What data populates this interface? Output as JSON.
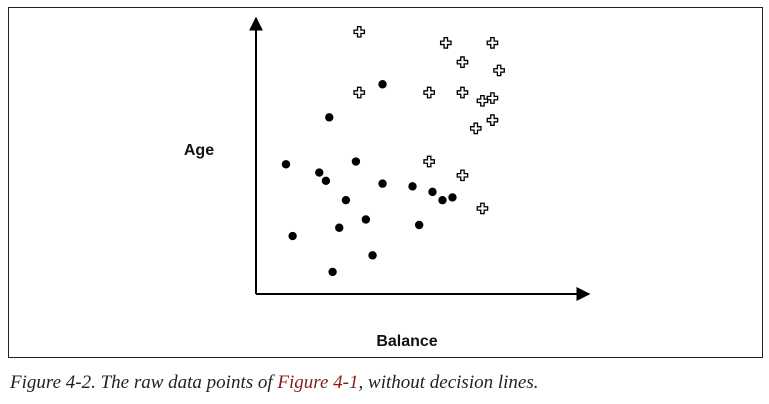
{
  "chart_data": {
    "type": "scatter",
    "xlabel": "Balance",
    "ylabel": "Age",
    "axes_with_arrows": true,
    "tick_labels": "none",
    "grid": false,
    "xlim": [
      0,
      100
    ],
    "ylim": [
      0,
      100
    ],
    "series": [
      {
        "marker": "dot",
        "color": "#000000",
        "points": [
          [
            38,
            76
          ],
          [
            22,
            64
          ],
          [
            9,
            47
          ],
          [
            19,
            44
          ],
          [
            21,
            41
          ],
          [
            30,
            48
          ],
          [
            38,
            40
          ],
          [
            47,
            39
          ],
          [
            53,
            37
          ],
          [
            27,
            34
          ],
          [
            56,
            34
          ],
          [
            59,
            35
          ],
          [
            33,
            27
          ],
          [
            25,
            24
          ],
          [
            49,
            25
          ],
          [
            11,
            21
          ],
          [
            35,
            14
          ],
          [
            23,
            8
          ]
        ]
      },
      {
        "marker": "cross",
        "color": "#ffffff",
        "points": [
          [
            31,
            95
          ],
          [
            57,
            91
          ],
          [
            71,
            91
          ],
          [
            62,
            84
          ],
          [
            73,
            81
          ],
          [
            31,
            73
          ],
          [
            52,
            73
          ],
          [
            62,
            73
          ],
          [
            71,
            71
          ],
          [
            68,
            70
          ],
          [
            66,
            60
          ],
          [
            71,
            63
          ],
          [
            52,
            48
          ],
          [
            62,
            43
          ],
          [
            68,
            31
          ]
        ]
      }
    ]
  },
  "caption": {
    "prefix": "Figure 4-2. The raw data points of ",
    "link": "Figure 4-1",
    "suffix": ", without decision lines."
  }
}
